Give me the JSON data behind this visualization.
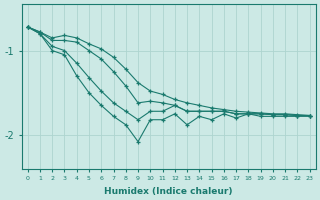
{
  "xlabel": "Humidex (Indice chaleur)",
  "bg_color": "#cce9e5",
  "line_color": "#1a7a6e",
  "grid_color": "#aed4cf",
  "x_values": [
    0,
    1,
    2,
    3,
    4,
    5,
    6,
    7,
    8,
    9,
    10,
    11,
    12,
    13,
    14,
    15,
    16,
    17,
    18,
    19,
    20,
    21,
    22,
    23
  ],
  "series": [
    [
      -0.72,
      -0.78,
      -0.85,
      -0.82,
      -0.85,
      -0.92,
      -0.98,
      -1.08,
      -1.22,
      -1.38,
      -1.48,
      -1.52,
      -1.58,
      -1.62,
      -1.65,
      -1.68,
      -1.7,
      -1.72,
      -1.73,
      -1.74,
      -1.75,
      -1.75,
      -1.76,
      -1.77
    ],
    [
      -0.72,
      -0.78,
      -0.88,
      -0.88,
      -0.9,
      -1.0,
      -1.1,
      -1.25,
      -1.42,
      -1.62,
      -1.6,
      -1.62,
      -1.65,
      -1.72,
      -1.72,
      -1.72,
      -1.72,
      -1.75,
      -1.75,
      -1.75,
      -1.76,
      -1.76,
      -1.77,
      -1.77
    ],
    [
      -0.72,
      -0.8,
      -0.95,
      -1.0,
      -1.15,
      -1.32,
      -1.48,
      -1.62,
      -1.72,
      -1.82,
      -1.72,
      -1.72,
      -1.65,
      -1.72,
      -1.72,
      -1.72,
      -1.72,
      -1.75,
      -1.75,
      -1.75,
      -1.76,
      -1.76,
      -1.77,
      -1.77
    ],
    [
      -0.72,
      -0.8,
      -1.0,
      -1.05,
      -1.3,
      -1.5,
      -1.65,
      -1.78,
      -1.88,
      -2.08,
      -1.82,
      -1.82,
      -1.75,
      -1.88,
      -1.78,
      -1.82,
      -1.75,
      -1.8,
      -1.75,
      -1.78,
      -1.78,
      -1.78,
      -1.78,
      -1.78
    ]
  ],
  "yticks": [
    -2,
    -1
  ],
  "ylim": [
    -2.4,
    -0.45
  ],
  "xlim": [
    -0.5,
    23.5
  ]
}
